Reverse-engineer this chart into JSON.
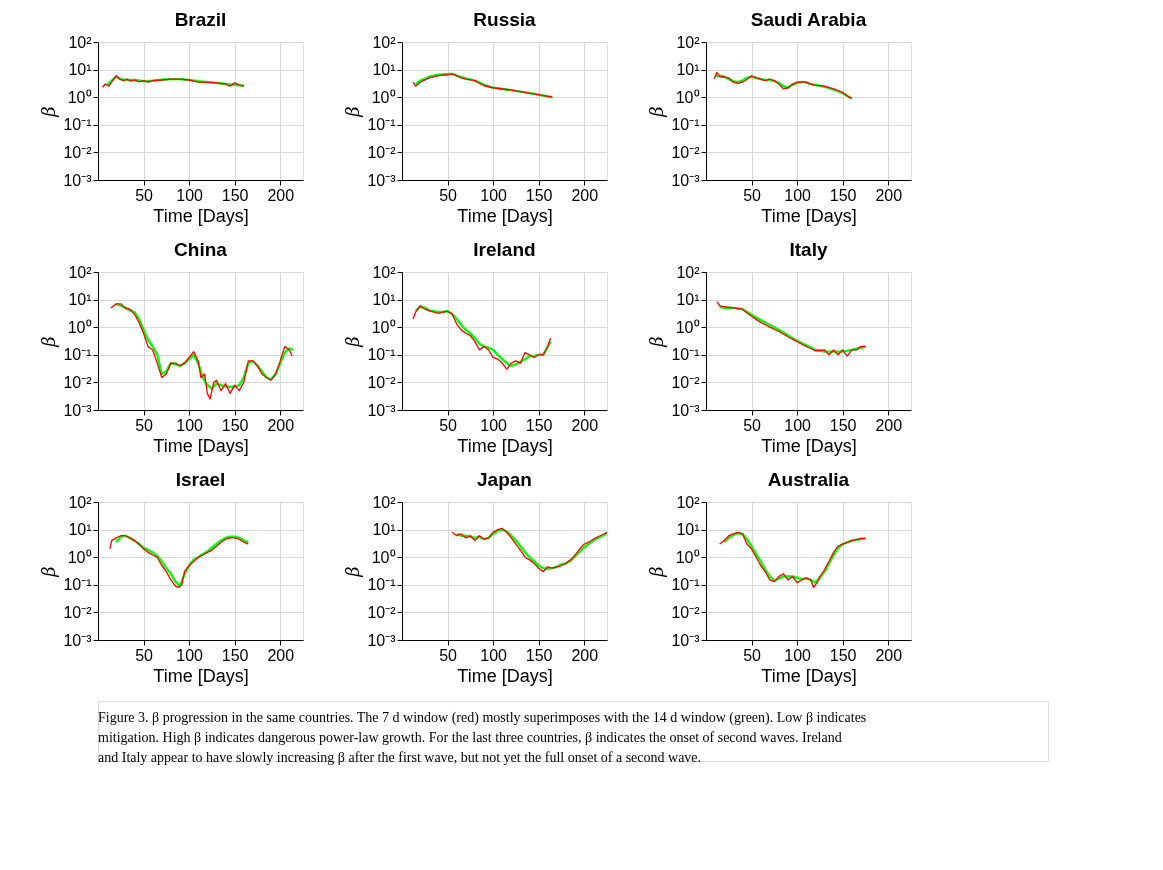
{
  "chart_data": [
    {
      "type": "line",
      "title": "Brazil",
      "xlabel": "Time [Days]",
      "ylabel": "β",
      "log": "y",
      "grid": true,
      "xlim": [
        0,
        225
      ],
      "xticks": [
        50,
        100,
        150,
        200
      ],
      "ylim": [
        0.001,
        100
      ],
      "yticks": [
        {
          "value": 0.001,
          "label": "10⁻³"
        },
        {
          "value": 0.01,
          "label": "10⁻²"
        },
        {
          "value": 0.1,
          "label": "10⁻¹"
        },
        {
          "value": 1,
          "label": "10⁰"
        },
        {
          "value": 10,
          "label": "10¹"
        },
        {
          "value": 100,
          "label": "10²"
        }
      ],
      "annotations": [
        "Figure 3.  β progression in the same countries. The 7 d window (red) mostly superimposes with the 14 d window (green). Low β indicates mitigation. High β indicates dangerous power-law growth. For the last three countries, β indicates the onset of second waves. Ireland and Italy appear to have slowly increasing β after the first wave, but not yet the full onset of a second wave."
      ],
      "series": [
        {
          "color": "#ff0000",
          "x": [
            5,
            8,
            12,
            16,
            20,
            24,
            28,
            32,
            36,
            40,
            45,
            50,
            55,
            60,
            70,
            80,
            90,
            100,
            110,
            120,
            130,
            140,
            145,
            150,
            155,
            160
          ],
          "values": [
            2.3,
            3,
            2.5,
            4,
            6,
            4.5,
            4,
            4.5,
            3.8,
            4.2,
            3.6,
            4,
            3.5,
            4,
            4.2,
            4.5,
            4.5,
            4.2,
            3.5,
            3.5,
            3.3,
            3,
            2.5,
            3.3,
            2.8,
            2.5
          ]
        },
        {
          "color": "#00ff00",
          "x": [
            10,
            15,
            20,
            25,
            30,
            40,
            50,
            60,
            70,
            80,
            90,
            100,
            110,
            120,
            130,
            140,
            150,
            160
          ],
          "values": [
            2.8,
            4,
            5.5,
            4.5,
            4.2,
            4.2,
            3.8,
            4,
            4.3,
            4.5,
            4.5,
            4.2,
            3.8,
            3.5,
            3.3,
            3,
            2.8,
            2.6
          ]
        }
      ]
    },
    {
      "type": "line",
      "title": "Russia",
      "xlabel": "Time [Days]",
      "ylabel": "β",
      "log": "y",
      "grid": true,
      "xlim": [
        0,
        225
      ],
      "xticks": [
        50,
        100,
        150,
        200
      ],
      "ylim": [
        0.001,
        100
      ],
      "yticks": [
        {
          "value": 0.001,
          "label": "10⁻³"
        },
        {
          "value": 0.01,
          "label": "10⁻²"
        },
        {
          "value": 0.1,
          "label": "10⁻¹"
        },
        {
          "value": 1,
          "label": "10⁰"
        },
        {
          "value": 10,
          "label": "10¹"
        },
        {
          "value": 100,
          "label": "10²"
        }
      ],
      "series": [
        {
          "color": "#ff0000",
          "x": [
            12,
            15,
            20,
            30,
            40,
            50,
            55,
            60,
            65,
            70,
            80,
            90,
            100,
            120,
            140,
            165
          ],
          "values": [
            3.5,
            2.5,
            3.5,
            5,
            6,
            6.5,
            7,
            6,
            5,
            4.5,
            4,
            2.6,
            2.2,
            1.8,
            1.4,
            1.0
          ]
        },
        {
          "color": "#00ff00",
          "x": [
            15,
            20,
            30,
            40,
            50,
            55,
            60,
            70,
            80,
            90,
            100,
            120,
            140,
            165
          ],
          "values": [
            3,
            4,
            5.5,
            6.5,
            7,
            7,
            6,
            4.8,
            4,
            2.8,
            2.2,
            1.8,
            1.4,
            1.0
          ]
        }
      ]
    },
    {
      "type": "line",
      "title": "Saudi Arabia",
      "xlabel": "Time [Days]",
      "ylabel": "β",
      "log": "y",
      "grid": true,
      "xlim": [
        0,
        225
      ],
      "xticks": [
        50,
        100,
        150,
        200
      ],
      "ylim": [
        0.001,
        100
      ],
      "yticks": [
        {
          "value": 0.001,
          "label": "10⁻³"
        },
        {
          "value": 0.01,
          "label": "10⁻²"
        },
        {
          "value": 0.1,
          "label": "10⁻¹"
        },
        {
          "value": 1,
          "label": "10⁰"
        },
        {
          "value": 10,
          "label": "10¹"
        },
        {
          "value": 100,
          "label": "10²"
        }
      ],
      "series": [
        {
          "color": "#ff0000",
          "x": [
            9,
            12,
            15,
            20,
            25,
            30,
            35,
            40,
            45,
            50,
            55,
            60,
            65,
            70,
            75,
            80,
            85,
            90,
            95,
            100,
            105,
            110,
            115,
            120,
            130,
            140,
            150,
            157,
            160
          ],
          "values": [
            4.7,
            8,
            5.5,
            5.5,
            5,
            3.5,
            3.2,
            3.5,
            4.5,
            6,
            5,
            4.5,
            4,
            4.5,
            4,
            3,
            2,
            2.2,
            3,
            3.5,
            3.6,
            3.5,
            3,
            2.7,
            2.5,
            2,
            1.5,
            1.0,
            0.9
          ]
        },
        {
          "color": "#00ff00",
          "x": [
            10,
            15,
            20,
            25,
            30,
            35,
            40,
            45,
            50,
            55,
            60,
            65,
            70,
            75,
            80,
            85,
            90,
            95,
            100,
            105,
            110,
            115,
            120,
            130,
            140,
            150,
            160
          ],
          "values": [
            6,
            6,
            5.5,
            4.5,
            3.8,
            3.5,
            4,
            5,
            5.5,
            5,
            4.5,
            4.2,
            4.2,
            3.8,
            3.3,
            2.5,
            2.2,
            2.8,
            3.3,
            3.6,
            3.4,
            3,
            2.8,
            2.4,
            1.9,
            1.4,
            0.9
          ]
        }
      ]
    },
    {
      "type": "line",
      "title": "China",
      "xlabel": "Time [Days]",
      "ylabel": "β",
      "log": "y",
      "grid": true,
      "xlim": [
        0,
        225
      ],
      "xticks": [
        50,
        100,
        150,
        200
      ],
      "ylim": [
        0.001,
        100
      ],
      "yticks": [
        {
          "value": 0.001,
          "label": "10⁻³"
        },
        {
          "value": 0.01,
          "label": "10⁻²"
        },
        {
          "value": 0.1,
          "label": "10⁻¹"
        },
        {
          "value": 1,
          "label": "10⁰"
        },
        {
          "value": 10,
          "label": "10¹"
        },
        {
          "value": 100,
          "label": "10²"
        }
      ],
      "series": [
        {
          "color": "#ff0000",
          "x": [
            14,
            20,
            25,
            30,
            35,
            40,
            45,
            50,
            55,
            60,
            65,
            70,
            75,
            80,
            85,
            90,
            95,
            100,
            105,
            110,
            113,
            117,
            120,
            123,
            127,
            130,
            135,
            140,
            145,
            150,
            155,
            160,
            165,
            170,
            175,
            180,
            185,
            190,
            195,
            200,
            205,
            210,
            213
          ],
          "values": [
            5,
            7,
            7,
            5,
            4.5,
            3,
            1.5,
            0.6,
            0.2,
            0.15,
            0.05,
            0.015,
            0.02,
            0.05,
            0.05,
            0.04,
            0.05,
            0.08,
            0.13,
            0.06,
            0.015,
            0.02,
            0.004,
            0.0025,
            0.01,
            0.012,
            0.005,
            0.009,
            0.004,
            0.008,
            0.005,
            0.01,
            0.06,
            0.06,
            0.04,
            0.02,
            0.015,
            0.012,
            0.02,
            0.06,
            0.2,
            0.15,
            0.09
          ]
        },
        {
          "color": "#00ff00",
          "x": [
            20,
            25,
            30,
            35,
            40,
            45,
            50,
            55,
            60,
            65,
            70,
            75,
            80,
            85,
            90,
            95,
            100,
            105,
            110,
            115,
            120,
            125,
            130,
            135,
            140,
            145,
            150,
            155,
            160,
            165,
            170,
            175,
            180,
            185,
            190,
            195,
            200,
            205,
            210,
            214
          ],
          "values": [
            7,
            6,
            5,
            4,
            3.5,
            2,
            0.8,
            0.35,
            0.2,
            0.1,
            0.02,
            0.025,
            0.05,
            0.045,
            0.04,
            0.05,
            0.07,
            0.1,
            0.05,
            0.015,
            0.008,
            0.006,
            0.009,
            0.008,
            0.007,
            0.007,
            0.007,
            0.008,
            0.015,
            0.05,
            0.06,
            0.04,
            0.025,
            0.015,
            0.013,
            0.02,
            0.05,
            0.12,
            0.17,
            0.15
          ]
        }
      ]
    },
    {
      "type": "line",
      "title": "Ireland",
      "xlabel": "Time [Days]",
      "ylabel": "β",
      "log": "y",
      "grid": true,
      "xlim": [
        0,
        225
      ],
      "xticks": [
        50,
        100,
        150,
        200
      ],
      "ylim": [
        0.001,
        100
      ],
      "yticks": [
        {
          "value": 0.001,
          "label": "10⁻³"
        },
        {
          "value": 0.01,
          "label": "10⁻²"
        },
        {
          "value": 0.1,
          "label": "10⁻¹"
        },
        {
          "value": 1,
          "label": "10⁰"
        },
        {
          "value": 10,
          "label": "10¹"
        },
        {
          "value": 100,
          "label": "10²"
        }
      ],
      "series": [
        {
          "color": "#ff0000",
          "x": [
            12,
            15,
            20,
            25,
            30,
            35,
            40,
            45,
            50,
            55,
            60,
            65,
            70,
            75,
            80,
            85,
            90,
            95,
            100,
            105,
            110,
            115,
            120,
            125,
            130,
            135,
            140,
            145,
            150,
            155,
            160,
            163
          ],
          "values": [
            2,
            3.5,
            6,
            4.5,
            4,
            3.5,
            3.2,
            3.5,
            3.8,
            3,
            1.3,
            0.8,
            0.6,
            0.5,
            0.3,
            0.15,
            0.2,
            0.15,
            0.08,
            0.07,
            0.05,
            0.03,
            0.05,
            0.06,
            0.05,
            0.12,
            0.1,
            0.08,
            0.1,
            0.1,
            0.2,
            0.4
          ]
        },
        {
          "color": "#00ff00",
          "x": [
            15,
            20,
            25,
            30,
            35,
            40,
            45,
            50,
            55,
            60,
            65,
            70,
            75,
            80,
            85,
            90,
            95,
            100,
            105,
            110,
            115,
            120,
            125,
            130,
            135,
            140,
            145,
            150,
            155,
            160,
            163
          ],
          "values": [
            4,
            5.5,
            5,
            4,
            3.8,
            3.6,
            3.6,
            3.8,
            3,
            2,
            1.2,
            0.8,
            0.6,
            0.4,
            0.25,
            0.2,
            0.18,
            0.15,
            0.1,
            0.07,
            0.05,
            0.04,
            0.045,
            0.055,
            0.07,
            0.09,
            0.09,
            0.1,
            0.1,
            0.2,
            0.3
          ]
        }
      ]
    },
    {
      "type": "line",
      "title": "Italy",
      "xlabel": "Time [Days]",
      "ylabel": "β",
      "log": "y",
      "grid": true,
      "xlim": [
        0,
        225
      ],
      "xticks": [
        50,
        100,
        150,
        200
      ],
      "ylim": [
        0.001,
        100
      ],
      "yticks": [
        {
          "value": 0.001,
          "label": "10⁻³"
        },
        {
          "value": 0.01,
          "label": "10⁻²"
        },
        {
          "value": 0.1,
          "label": "10⁻¹"
        },
        {
          "value": 1,
          "label": "10⁰"
        },
        {
          "value": 10,
          "label": "10¹"
        },
        {
          "value": 100,
          "label": "10²"
        }
      ],
      "series": [
        {
          "color": "#ff0000",
          "x": [
            12,
            15,
            20,
            30,
            40,
            50,
            60,
            70,
            80,
            90,
            100,
            110,
            120,
            130,
            135,
            140,
            145,
            150,
            155,
            160,
            165,
            170,
            175
          ],
          "values": [
            8.5,
            6,
            5.5,
            5,
            4.5,
            2.5,
            1.5,
            1.0,
            0.7,
            0.45,
            0.3,
            0.2,
            0.14,
            0.15,
            0.1,
            0.15,
            0.1,
            0.15,
            0.09,
            0.15,
            0.15,
            0.2,
            0.2
          ]
        },
        {
          "color": "#00ff00",
          "x": [
            15,
            20,
            30,
            40,
            50,
            60,
            70,
            80,
            90,
            100,
            110,
            120,
            130,
            140,
            150,
            160,
            170,
            175
          ],
          "values": [
            5.5,
            5,
            5,
            4.5,
            2.8,
            1.8,
            1.2,
            0.8,
            0.5,
            0.32,
            0.22,
            0.15,
            0.13,
            0.13,
            0.13,
            0.15,
            0.18,
            0.2
          ]
        }
      ]
    },
    {
      "type": "line",
      "title": "Israel",
      "xlabel": "Time [Days]",
      "ylabel": "β",
      "log": "y",
      "grid": true,
      "xlim": [
        0,
        225
      ],
      "xticks": [
        50,
        100,
        150,
        200
      ],
      "ylim": [
        0.001,
        100
      ],
      "yticks": [
        {
          "value": 0.001,
          "label": "10⁻³"
        },
        {
          "value": 0.01,
          "label": "10⁻²"
        },
        {
          "value": 0.1,
          "label": "10⁻¹"
        },
        {
          "value": 1,
          "label": "10⁰"
        },
        {
          "value": 10,
          "label": "10¹"
        },
        {
          "value": 100,
          "label": "10²"
        }
      ],
      "series": [
        {
          "color": "#ff0000",
          "x": [
            13,
            15,
            20,
            25,
            30,
            35,
            40,
            45,
            50,
            55,
            60,
            65,
            70,
            75,
            80,
            85,
            88,
            92,
            95,
            100,
            105,
            110,
            115,
            120,
            125,
            130,
            135,
            140,
            145,
            150,
            155,
            160,
            165
          ],
          "values": [
            2,
            4,
            5,
            6,
            6,
            5,
            4,
            3,
            2,
            1.5,
            1.2,
            1,
            0.5,
            0.3,
            0.15,
            0.09,
            0.08,
            0.1,
            0.3,
            0.5,
            0.7,
            1,
            1.2,
            1.5,
            1.8,
            2.5,
            3.5,
            4.5,
            5,
            5,
            4.5,
            3.5,
            3
          ]
        },
        {
          "color": "#00ff00",
          "x": [
            20,
            25,
            30,
            35,
            40,
            45,
            50,
            55,
            60,
            65,
            70,
            75,
            80,
            85,
            90,
            95,
            100,
            105,
            110,
            115,
            120,
            125,
            130,
            135,
            140,
            145,
            150,
            155,
            160,
            165
          ],
          "values": [
            3.5,
            5.5,
            6,
            5,
            4,
            3,
            2.2,
            1.8,
            1.5,
            1.1,
            0.7,
            0.4,
            0.25,
            0.13,
            0.09,
            0.25,
            0.5,
            0.8,
            1.0,
            1.3,
            1.6,
            2.2,
            3,
            4,
            5,
            5.5,
            5.5,
            5,
            4,
            3.5
          ]
        }
      ]
    },
    {
      "type": "line",
      "title": "Japan",
      "xlabel": "Time [Days]",
      "ylabel": "β",
      "log": "y",
      "grid": true,
      "xlim": [
        0,
        225
      ],
      "xticks": [
        50,
        100,
        150,
        200
      ],
      "ylim": [
        0.001,
        100
      ],
      "yticks": [
        {
          "value": 0.001,
          "label": "10⁻³"
        },
        {
          "value": 0.01,
          "label": "10⁻²"
        },
        {
          "value": 0.1,
          "label": "10⁻¹"
        },
        {
          "value": 1,
          "label": "10⁰"
        },
        {
          "value": 10,
          "label": "10¹"
        },
        {
          "value": 100,
          "label": "10²"
        }
      ],
      "series": [
        {
          "color": "#ff0000",
          "x": [
            55,
            60,
            65,
            70,
            75,
            80,
            85,
            90,
            95,
            100,
            105,
            110,
            115,
            120,
            125,
            130,
            135,
            140,
            145,
            150,
            155,
            160,
            165,
            170,
            175,
            180,
            185,
            190,
            195,
            200,
            205,
            210,
            215,
            220,
            225
          ],
          "values": [
            8,
            6,
            7,
            5,
            6,
            4,
            6,
            4.5,
            5,
            8,
            10,
            11,
            8,
            5,
            3,
            1.8,
            1,
            0.8,
            0.6,
            0.4,
            0.3,
            0.45,
            0.4,
            0.45,
            0.5,
            0.6,
            0.8,
            1.2,
            2,
            3,
            3.5,
            4.5,
            5.5,
            6.5,
            8
          ]
        },
        {
          "color": "#00ff00",
          "x": [
            60,
            65,
            70,
            75,
            80,
            85,
            90,
            95,
            100,
            105,
            110,
            115,
            120,
            125,
            130,
            135,
            140,
            145,
            150,
            155,
            160,
            165,
            170,
            175,
            180,
            185,
            190,
            195,
            200,
            205,
            210,
            215,
            220,
            225
          ],
          "values": [
            7,
            6,
            6,
            5.5,
            5,
            5.5,
            4.5,
            5,
            7,
            9,
            10,
            8.5,
            6,
            4,
            2.5,
            1.5,
            1,
            0.7,
            0.5,
            0.4,
            0.38,
            0.4,
            0.45,
            0.55,
            0.6,
            0.75,
            1.1,
            1.6,
            2.3,
            3,
            4,
            5,
            6,
            7.5
          ]
        }
      ]
    },
    {
      "type": "line",
      "title": "Australia",
      "xlabel": "Time [Days]",
      "ylabel": "β",
      "log": "y",
      "grid": true,
      "xlim": [
        0,
        225
      ],
      "xticks": [
        50,
        100,
        150,
        200
      ],
      "ylim": [
        0.001,
        100
      ],
      "yticks": [
        {
          "value": 0.001,
          "label": "10⁻³"
        },
        {
          "value": 0.01,
          "label": "10⁻²"
        },
        {
          "value": 0.1,
          "label": "10⁻¹"
        },
        {
          "value": 1,
          "label": "10⁰"
        },
        {
          "value": 10,
          "label": "10¹"
        },
        {
          "value": 100,
          "label": "10²"
        }
      ],
      "series": [
        {
          "color": "#ff0000",
          "x": [
            15,
            20,
            25,
            30,
            35,
            40,
            45,
            50,
            55,
            60,
            65,
            70,
            75,
            80,
            85,
            90,
            95,
            100,
            105,
            110,
            115,
            118,
            122,
            125,
            130,
            135,
            140,
            145,
            150,
            160,
            170,
            175
          ],
          "values": [
            3,
            4,
            6,
            7,
            8,
            7,
            3,
            2,
            1,
            0.5,
            0.3,
            0.15,
            0.13,
            0.2,
            0.25,
            0.15,
            0.2,
            0.12,
            0.15,
            0.18,
            0.15,
            0.08,
            0.12,
            0.2,
            0.35,
            0.7,
            1.5,
            2.5,
            3,
            4,
            4.8,
            4.8
          ]
        },
        {
          "color": "#00ff00",
          "x": [
            20,
            25,
            30,
            35,
            40,
            45,
            50,
            55,
            60,
            65,
            70,
            75,
            80,
            85,
            90,
            95,
            100,
            105,
            110,
            115,
            120,
            125,
            130,
            135,
            140,
            145,
            150,
            160,
            170,
            175
          ],
          "values": [
            3.5,
            5,
            6.5,
            7.5,
            7,
            4.5,
            2.5,
            1.3,
            0.7,
            0.35,
            0.2,
            0.14,
            0.17,
            0.2,
            0.2,
            0.2,
            0.18,
            0.16,
            0.17,
            0.15,
            0.12,
            0.18,
            0.3,
            0.6,
            1.2,
            2.2,
            3,
            4,
            4.5,
            4.8
          ]
        }
      ]
    }
  ]
}
